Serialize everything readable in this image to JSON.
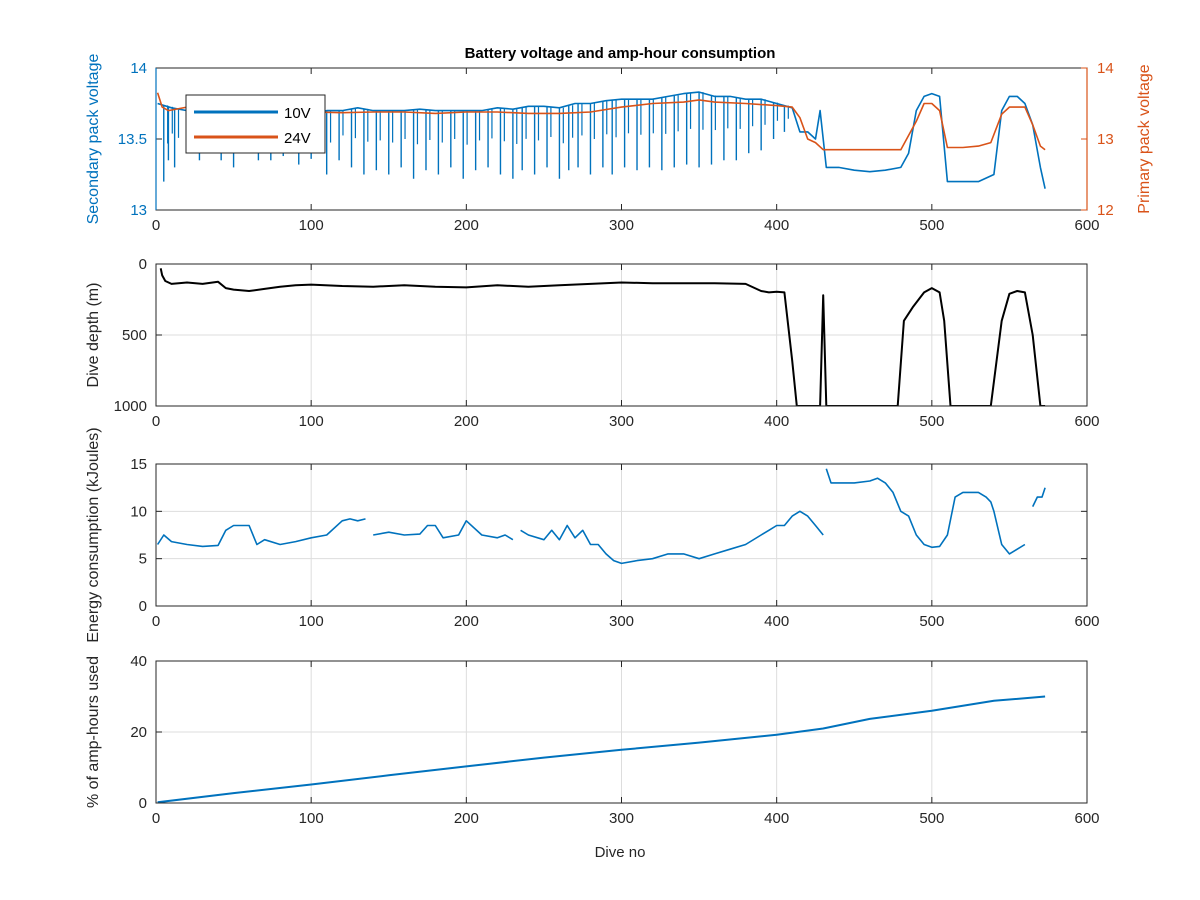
{
  "figure": {
    "title": "Battery voltage and amp-hour consumption",
    "xlabel": "Dive no"
  },
  "colors": {
    "blue": "#0072BD",
    "orange": "#D95319",
    "black": "#000000",
    "grid": "#dddddd",
    "axis": "#262626"
  },
  "chart_data": [
    {
      "id": "voltage",
      "type": "line",
      "title": "Battery voltage and amp-hour consumption",
      "xlabel": "",
      "ylabel": "Secondary pack voltage",
      "ylabel_right": "Primary pack voltage",
      "xlim": [
        0,
        600
      ],
      "ylim": [
        13,
        14
      ],
      "ylim_right": [
        12,
        14
      ],
      "xticks": [
        "0",
        "100",
        "200",
        "300",
        "400",
        "500",
        "600"
      ],
      "yticks": [
        "13",
        "13.5",
        "14"
      ],
      "yticks_right": [
        "12",
        "13",
        "14"
      ],
      "grid": false,
      "legend": "top-left",
      "series": [
        {
          "name": "10V",
          "axis": "left",
          "color": "#0072BD",
          "x": [
            1,
            10,
            20,
            30,
            40,
            50,
            60,
            70,
            80,
            90,
            100,
            110,
            120,
            130,
            140,
            150,
            160,
            170,
            180,
            190,
            200,
            210,
            220,
            230,
            240,
            250,
            260,
            270,
            280,
            290,
            300,
            310,
            320,
            330,
            340,
            350,
            360,
            370,
            380,
            390,
            400,
            410,
            415,
            420,
            425,
            428,
            430,
            432,
            436,
            440,
            450,
            460,
            470,
            480,
            485,
            490,
            495,
            500,
            505,
            510,
            520,
            530,
            540,
            545,
            550,
            555,
            560,
            565,
            570,
            573
          ],
          "y": [
            13.75,
            13.72,
            13.7,
            13.68,
            13.7,
            13.68,
            13.7,
            13.68,
            13.69,
            13.7,
            13.68,
            13.7,
            13.7,
            13.72,
            13.7,
            13.7,
            13.7,
            13.71,
            13.7,
            13.7,
            13.7,
            13.7,
            13.72,
            13.71,
            13.73,
            13.73,
            13.72,
            13.75,
            13.75,
            13.77,
            13.78,
            13.78,
            13.78,
            13.8,
            13.82,
            13.83,
            13.8,
            13.8,
            13.78,
            13.78,
            13.75,
            13.72,
            13.55,
            13.55,
            13.5,
            13.7,
            13.5,
            13.3,
            13.3,
            13.3,
            13.28,
            13.27,
            13.28,
            13.3,
            13.4,
            13.7,
            13.8,
            13.82,
            13.8,
            13.2,
            13.2,
            13.2,
            13.25,
            13.7,
            13.8,
            13.8,
            13.75,
            13.6,
            13.3,
            13.15
          ],
          "dips": [
            [
              5,
              13.2
            ],
            [
              8,
              13.35
            ],
            [
              12,
              13.3
            ],
            [
              22,
              13.42
            ],
            [
              28,
              13.35
            ],
            [
              35,
              13.4
            ],
            [
              42,
              13.35
            ],
            [
              50,
              13.3
            ],
            [
              58,
              13.4
            ],
            [
              66,
              13.35
            ],
            [
              74,
              13.35
            ],
            [
              82,
              13.38
            ],
            [
              92,
              13.32
            ],
            [
              100,
              13.36
            ],
            [
              110,
              13.25
            ],
            [
              118,
              13.35
            ],
            [
              126,
              13.3
            ],
            [
              134,
              13.25
            ],
            [
              142,
              13.28
            ],
            [
              150,
              13.25
            ],
            [
              158,
              13.3
            ],
            [
              166,
              13.22
            ],
            [
              174,
              13.28
            ],
            [
              182,
              13.25
            ],
            [
              190,
              13.3
            ],
            [
              198,
              13.22
            ],
            [
              206,
              13.28
            ],
            [
              214,
              13.3
            ],
            [
              222,
              13.25
            ],
            [
              230,
              13.22
            ],
            [
              236,
              13.28
            ],
            [
              244,
              13.25
            ],
            [
              252,
              13.3
            ],
            [
              260,
              13.22
            ],
            [
              266,
              13.28
            ],
            [
              272,
              13.3
            ],
            [
              280,
              13.25
            ],
            [
              288,
              13.3
            ],
            [
              294,
              13.25
            ],
            [
              302,
              13.3
            ],
            [
              310,
              13.28
            ],
            [
              318,
              13.3
            ],
            [
              326,
              13.28
            ],
            [
              334,
              13.3
            ],
            [
              342,
              13.32
            ],
            [
              350,
              13.3
            ],
            [
              358,
              13.32
            ],
            [
              366,
              13.35
            ],
            [
              374,
              13.35
            ],
            [
              382,
              13.4
            ],
            [
              390,
              13.42
            ],
            [
              398,
              13.5
            ],
            [
              405,
              13.55
            ]
          ]
        },
        {
          "name": "24V",
          "axis": "right",
          "color": "#D95319",
          "x": [
            1,
            4,
            8,
            20,
            40,
            60,
            80,
            100,
            120,
            140,
            160,
            180,
            200,
            220,
            240,
            260,
            280,
            300,
            320,
            340,
            350,
            360,
            380,
            400,
            410,
            415,
            420,
            425,
            430,
            440,
            460,
            480,
            490,
            495,
            500,
            505,
            510,
            520,
            530,
            538,
            545,
            550,
            560,
            565,
            570,
            573
          ],
          "y": [
            13.65,
            13.45,
            13.4,
            13.45,
            13.4,
            13.42,
            13.4,
            13.38,
            13.37,
            13.38,
            13.38,
            13.36,
            13.38,
            13.38,
            13.36,
            13.36,
            13.38,
            13.45,
            13.5,
            13.52,
            13.55,
            13.52,
            13.5,
            13.47,
            13.45,
            13.3,
            13.0,
            12.95,
            12.85,
            12.85,
            12.85,
            12.85,
            13.25,
            13.5,
            13.5,
            13.4,
            12.88,
            12.88,
            12.9,
            12.95,
            13.35,
            13.45,
            13.45,
            13.2,
            12.9,
            12.85
          ]
        }
      ]
    },
    {
      "id": "depth",
      "type": "line",
      "xlabel": "",
      "ylabel": "Dive depth (m)",
      "xlim": [
        0,
        600
      ],
      "ylim": [
        0,
        1000
      ],
      "yreversed": true,
      "xticks": [
        "0",
        "100",
        "200",
        "300",
        "400",
        "500",
        "600"
      ],
      "yticks": [
        "0",
        "500",
        "1000"
      ],
      "grid": true,
      "series": [
        {
          "color": "#000000",
          "x": [
            3,
            4,
            6,
            10,
            20,
            30,
            40,
            45,
            50,
            60,
            70,
            80,
            90,
            100,
            120,
            140,
            160,
            180,
            200,
            220,
            240,
            260,
            280,
            300,
            320,
            340,
            360,
            380,
            390,
            395,
            400,
            405,
            410,
            413,
            416,
            420,
            425,
            428,
            430,
            432,
            434,
            436,
            440,
            460,
            478,
            482,
            488,
            495,
            500,
            505,
            508,
            512,
            520,
            535,
            538,
            545,
            550,
            555,
            560,
            565,
            570,
            573
          ],
          "y": [
            30,
            80,
            120,
            140,
            130,
            140,
            125,
            170,
            180,
            190,
            175,
            160,
            150,
            145,
            155,
            160,
            150,
            160,
            165,
            150,
            160,
            150,
            140,
            130,
            135,
            135,
            135,
            140,
            190,
            200,
            195,
            200,
            680,
            1000,
            1000,
            1000,
            1000,
            1000,
            220,
            1000,
            1000,
            1000,
            1000,
            1000,
            1000,
            400,
            300,
            200,
            170,
            200,
            400,
            1000,
            1000,
            1000,
            1000,
            400,
            210,
            190,
            200,
            500,
            1000,
            1000
          ]
        }
      ]
    },
    {
      "id": "energy",
      "type": "line",
      "xlabel": "",
      "ylabel": "Energy consumption (kJoules)",
      "xlim": [
        0,
        600
      ],
      "ylim": [
        0,
        15
      ],
      "xticks": [
        "0",
        "100",
        "200",
        "300",
        "400",
        "500",
        "600"
      ],
      "yticks": [
        "0",
        "5",
        "10",
        "15"
      ],
      "grid": true,
      "series": [
        {
          "color": "#0072BD",
          "segments": [
            {
              "x": [
                1,
                5,
                10,
                20,
                30,
                40,
                45,
                50,
                60,
                65,
                70,
                80,
                90,
                100,
                110,
                120,
                125,
                130,
                135
              ],
              "y": [
                6.5,
                7.5,
                6.8,
                6.5,
                6.3,
                6.4,
                8.0,
                8.5,
                8.5,
                6.5,
                7.0,
                6.5,
                6.8,
                7.2,
                7.5,
                9.0,
                9.2,
                9.0,
                9.2
              ]
            },
            {
              "x": [
                140,
                150,
                160,
                170,
                175,
                180,
                185,
                195,
                200,
                210,
                220,
                225,
                230
              ],
              "y": [
                7.5,
                7.8,
                7.5,
                7.6,
                8.5,
                8.5,
                7.2,
                7.5,
                9.0,
                7.5,
                7.2,
                7.5,
                7.0
              ]
            },
            {
              "x": [
                235,
                240,
                250,
                255,
                260,
                265,
                270,
                275,
                280,
                285,
                290,
                295,
                300,
                310,
                320,
                330,
                340,
                350,
                360,
                370,
                380,
                390,
                395,
                400,
                405,
                410,
                415,
                420,
                425,
                430
              ],
              "y": [
                8.0,
                7.5,
                7.0,
                8.0,
                7.0,
                8.5,
                7.2,
                8.0,
                6.5,
                6.5,
                5.5,
                4.8,
                4.5,
                4.8,
                5.0,
                5.5,
                5.5,
                5.0,
                5.5,
                6.0,
                6.5,
                7.5,
                8.0,
                8.5,
                8.5,
                9.5,
                10.0,
                9.5,
                8.5,
                7.5
              ]
            },
            {
              "x": [
                432,
                435,
                440,
                450,
                460,
                465,
                470,
                475,
                480,
                485,
                490,
                495,
                500,
                505,
                510,
                515,
                520,
                525,
                530,
                535,
                538,
                540,
                545,
                550,
                555,
                560
              ],
              "y": [
                14.5,
                13.0,
                13.0,
                13.0,
                13.2,
                13.5,
                13.0,
                12.0,
                10.0,
                9.5,
                7.5,
                6.5,
                6.2,
                6.3,
                7.5,
                11.5,
                12.0,
                12.0,
                12.0,
                11.5,
                11.0,
                10.0,
                6.5,
                5.5,
                6.0,
                6.5
              ]
            },
            {
              "x": [
                565,
                568,
                571,
                573
              ],
              "y": [
                10.5,
                11.5,
                11.5,
                12.5
              ]
            }
          ]
        }
      ]
    },
    {
      "id": "amphours",
      "type": "line",
      "xlabel": "Dive no",
      "ylabel": "% of amp-hours used",
      "xlim": [
        0,
        600
      ],
      "ylim": [
        0,
        40
      ],
      "xticks": [
        "0",
        "100",
        "200",
        "300",
        "400",
        "500",
        "600"
      ],
      "yticks": [
        "0",
        "20",
        "40"
      ],
      "grid": true,
      "series": [
        {
          "color": "#0072BD",
          "x": [
            1,
            50,
            100,
            150,
            200,
            250,
            300,
            350,
            400,
            430,
            460,
            500,
            540,
            573
          ],
          "y": [
            0.2,
            2.8,
            5.2,
            7.8,
            10.3,
            12.8,
            15.0,
            17.0,
            19.2,
            21.0,
            23.7,
            26.0,
            28.8,
            30.0
          ]
        }
      ]
    }
  ]
}
